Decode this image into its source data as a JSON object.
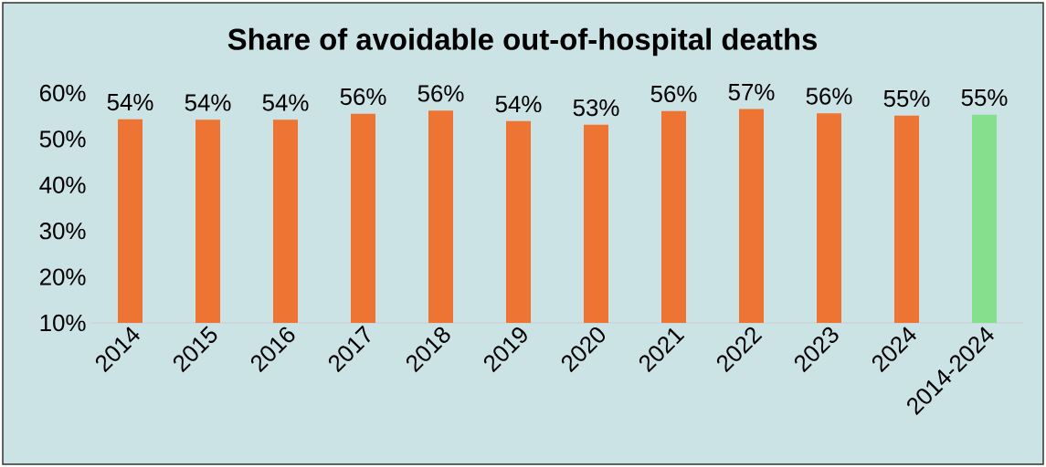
{
  "chart_data": {
    "type": "bar",
    "title": "Share of avoidable out-of-hospital deaths",
    "categories": [
      "2014",
      "2015",
      "2016",
      "2017",
      "2018",
      "2019",
      "2020",
      "2021",
      "2022",
      "2023",
      "2024",
      "2014-2024"
    ],
    "values": [
      54.3,
      54.2,
      54.2,
      55.5,
      56.2,
      53.9,
      53.1,
      56.1,
      56.5,
      55.6,
      55.1,
      55.3
    ],
    "value_labels": [
      "54%",
      "54%",
      "54%",
      "56%",
      "56%",
      "54%",
      "53%",
      "56%",
      "57%",
      "56%",
      "55%",
      "55%"
    ],
    "colors": [
      "#ed7432",
      "#ed7432",
      "#ed7432",
      "#ed7432",
      "#ed7432",
      "#ed7432",
      "#ed7432",
      "#ed7432",
      "#ed7432",
      "#ed7432",
      "#ed7432",
      "#84e08c"
    ],
    "ylim": [
      10,
      60
    ],
    "yticks": [
      {
        "value": 10,
        "label": "10%"
      },
      {
        "value": 20,
        "label": "20%"
      },
      {
        "value": 30,
        "label": "30%"
      },
      {
        "value": 40,
        "label": "40%"
      },
      {
        "value": 50,
        "label": "50%"
      },
      {
        "value": 60,
        "label": "60%"
      }
    ],
    "grid": false
  }
}
